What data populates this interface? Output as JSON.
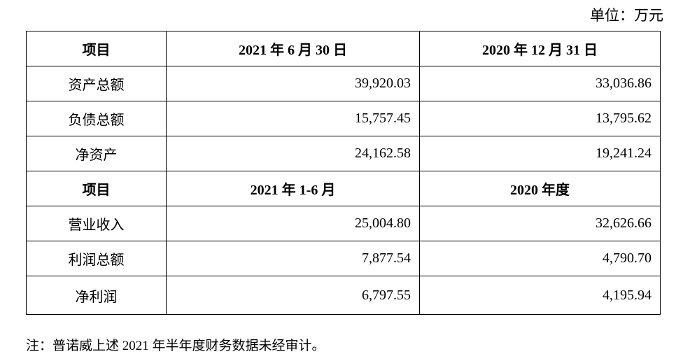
{
  "unit": "单位：万元",
  "table": {
    "sections": [
      {
        "header": [
          "项目",
          "2021 年 6 月 30 日",
          "2020 年 12 月 31 日"
        ],
        "rows": [
          [
            "资产总额",
            "39,920.03",
            "33,036.86"
          ],
          [
            "负债总额",
            "15,757.45",
            "13,795.62"
          ],
          [
            "净资产",
            "24,162.58",
            "19,241.24"
          ]
        ]
      },
      {
        "header": [
          "项目",
          "2021 年 1-6 月",
          "2020 年度"
        ],
        "rows": [
          [
            "营业收入",
            "25,004.80",
            "32,626.66"
          ],
          [
            "利润总额",
            "7,877.54",
            "4,790.70"
          ],
          [
            "净利润",
            "6,797.55",
            "4,195.94"
          ]
        ]
      }
    ]
  },
  "note": "注：普诺威上述 2021 年半年度财务数据未经审计。"
}
